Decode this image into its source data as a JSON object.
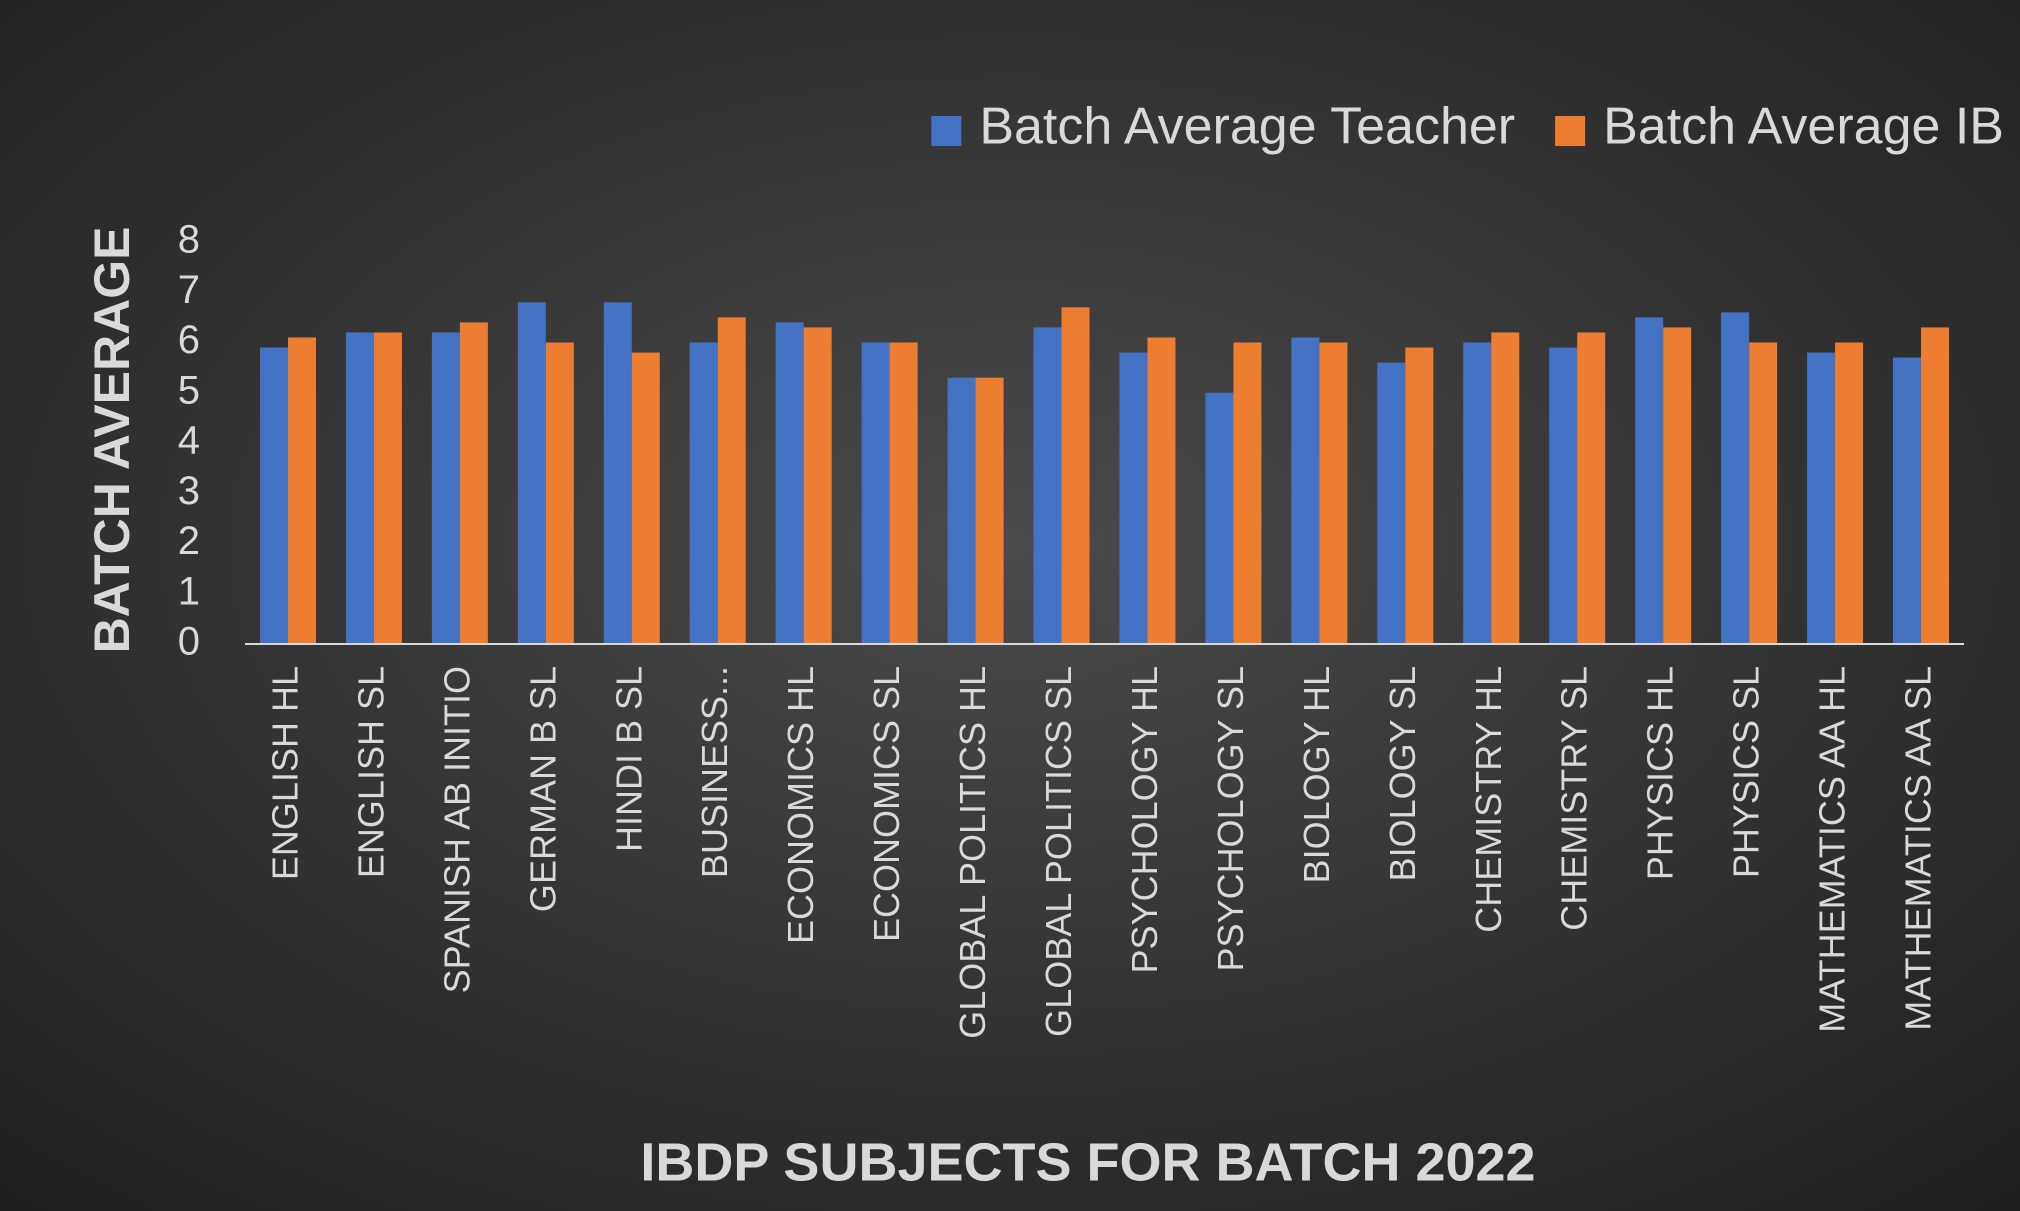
{
  "chart_data": {
    "type": "bar",
    "x_label": "IBDP SUBJECTS FOR BATCH 2022",
    "y_label": "BATCH AVERAGE",
    "categories": [
      "ENGLISH HL",
      "ENGLISH SL",
      "SPANISH AB INITIO",
      "GERMAN B SL",
      "HINDI B SL",
      "BUSINESS...",
      "ECONOMICS HL",
      "ECONOMICS SL",
      "GLOBAL POLITICS HL",
      "GLOBAL POLITICS SL",
      "PSYCHOLOGY HL",
      "PSYCHOLOGY SL",
      "BIOLOGY HL",
      "BIOLOGY SL",
      "CHEMISTRY HL",
      "CHEMISTRY SL",
      "PHYSICS HL",
      "PHYSICS SL",
      "MATHEMATICS AA HL",
      "MATHEMATICS AA SL"
    ],
    "series": [
      {
        "name": "Batch Average Teacher",
        "color": "#4472c4",
        "values": [
          5.9,
          6.2,
          6.2,
          6.8,
          6.8,
          6.0,
          6.4,
          6.0,
          5.3,
          6.3,
          5.8,
          5.0,
          6.1,
          5.6,
          6.0,
          5.9,
          6.5,
          6.6,
          5.8,
          5.7
        ]
      },
      {
        "name": "Batch Average IB",
        "color": "#ed7d31",
        "values": [
          6.1,
          6.2,
          6.4,
          6.0,
          5.8,
          6.5,
          6.3,
          6.0,
          5.3,
          6.7,
          6.1,
          6.0,
          6.0,
          5.9,
          6.2,
          6.2,
          6.3,
          6.0,
          6.0,
          6.3
        ]
      }
    ],
    "ylim": [
      0,
      8
    ],
    "yticks": [
      0,
      1,
      2,
      3,
      4,
      5,
      6,
      7,
      8
    ],
    "grid": false,
    "legend": "top-right"
  }
}
